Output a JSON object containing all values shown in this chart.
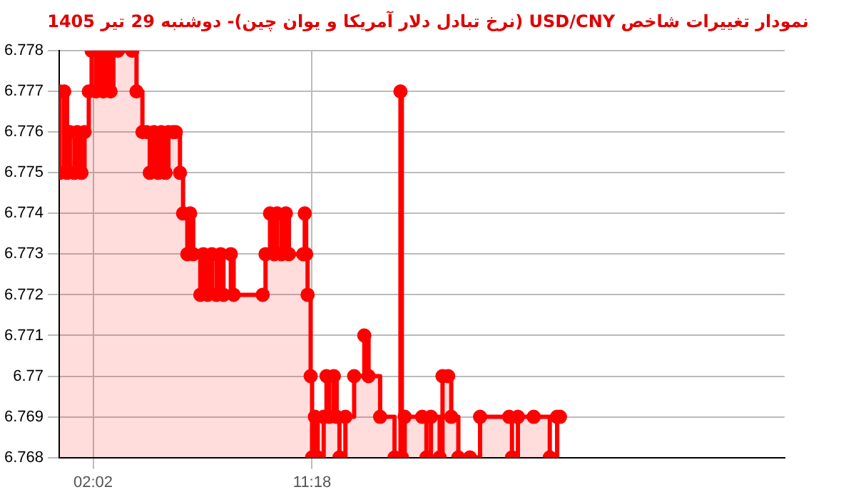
{
  "chart_data": {
    "type": "step",
    "title": "نمودار تغییرات شاخص USD/CNY (نرخ تبادل دلار آمریکا و یوان چین)- دوشنبه  29 تیر 1405",
    "x": [
      0.62,
      0.62,
      0.81,
      0.93,
      1.05,
      1.24,
      1.36,
      1.54,
      1.67,
      1.85,
      1.97,
      2.16,
      2.28,
      2.46,
      2.59,
      2.77,
      2.89,
      3.08,
      3.69,
      3.87,
      4.12,
      4.3,
      4.43,
      4.61,
      4.79,
      4.92,
      5.1,
      5.22,
      5.41,
      5.53,
      5.71,
      5.84,
      6.02,
      6.14,
      6.27,
      6.57,
      6.7,
      6.88,
      7.06,
      7.25,
      7.43,
      7.55,
      7.86,
      7.98,
      9.21,
      9.33,
      9.52,
      9.7,
      9.82,
      10.01,
      10.19,
      10.32,
      10.93,
      10.99,
      11.05,
      11.11,
      11.24,
      11.3,
      11.42,
      11.54,
      11.79,
      11.91,
      12.03,
      12.22,
      12.34,
      12.46,
      12.71,
      13.08,
      13.51,
      13.69,
      14.18,
      14.79,
      15.04,
      15.1,
      15.22,
      15.96,
      16.14,
      16.33,
      16.7,
      16.82,
      17.06,
      17.19,
      17.49,
      17.98,
      18.41,
      19.64,
      19.76,
      20.01,
      20.68,
      21.36,
      21.67,
      21.79
    ],
    "series": [
      {
        "color": "#ff0000",
        "values": [
          6.777,
          6.775,
          6.777,
          6.775,
          6.776,
          6.775,
          6.776,
          6.775,
          6.776,
          6.777,
          6.778,
          6.777,
          6.778,
          6.777,
          6.778,
          6.777,
          6.778,
          6.778,
          6.778,
          6.777,
          6.776,
          6.776,
          6.775,
          6.776,
          6.775,
          6.776,
          6.775,
          6.776,
          6.776,
          6.776,
          6.775,
          6.774,
          6.773,
          6.774,
          6.773,
          6.772,
          6.773,
          6.772,
          6.773,
          6.772,
          6.773,
          6.772,
          6.773,
          6.772,
          6.772,
          6.773,
          6.774,
          6.773,
          6.774,
          6.773,
          6.774,
          6.773,
          6.773,
          6.774,
          6.773,
          6.772,
          6.77,
          6.768,
          6.769,
          6.768,
          6.769,
          6.77,
          6.769,
          6.77,
          6.769,
          6.768,
          6.769,
          6.77,
          6.771,
          6.77,
          6.769,
          6.768,
          6.777,
          6.768,
          6.769,
          6.769,
          6.768,
          6.769,
          6.768,
          6.77,
          6.77,
          6.769,
          6.768,
          6.768,
          6.769,
          6.769,
          6.768,
          6.769,
          6.769,
          6.768,
          6.769,
          6.769
        ]
      }
    ],
    "xlim": [
      0.6,
      31.3
    ],
    "xticks": [
      {
        "value": 2.0333,
        "label": "02:02"
      },
      {
        "value": 11.3,
        "label": "11:18"
      }
    ],
    "ylim": [
      6.768,
      6.778
    ],
    "yticks": [
      6.768,
      6.769,
      6.77,
      6.771,
      6.772,
      6.773,
      6.774,
      6.775,
      6.776,
      6.777,
      6.778
    ],
    "grid": true,
    "marker": "circle",
    "legend": false
  }
}
